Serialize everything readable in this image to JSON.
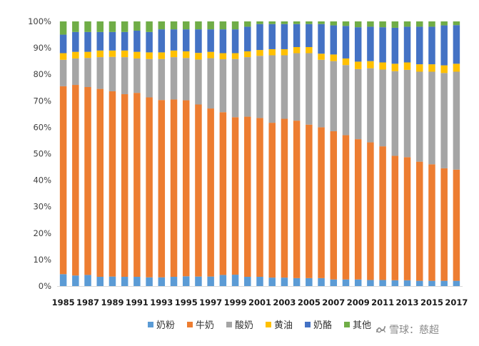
{
  "chart_data": {
    "type": "stacked_bar_percent",
    "categories": [
      "1985",
      "1986",
      "1987",
      "1988",
      "1989",
      "1990",
      "1991",
      "1992",
      "1993",
      "1994",
      "1995",
      "1996",
      "1997",
      "1998",
      "1999",
      "2000",
      "2001",
      "2002",
      "2003",
      "2004",
      "2005",
      "2006",
      "2007",
      "2008",
      "2009",
      "2010",
      "2011",
      "2012",
      "2013",
      "2014",
      "2015",
      "2016",
      "2017"
    ],
    "tick_labels_shown": [
      "1985",
      "1987",
      "1989",
      "1991",
      "1993",
      "1995",
      "1997",
      "1999",
      "2001",
      "2003",
      "2005",
      "2007",
      "2009",
      "2011",
      "2013",
      "2015",
      "2017"
    ],
    "y_ticks": [
      "0%",
      "10%",
      "20%",
      "30%",
      "40%",
      "50%",
      "60%",
      "70%",
      "80%",
      "90%",
      "100%"
    ],
    "ylim": [
      0,
      100
    ],
    "grid": false,
    "legend_position": "bottom",
    "series": [
      {
        "name": "奶粉",
        "color": "#5b9bd5",
        "values": [
          4.5,
          4.0,
          4.2,
          3.5,
          3.6,
          3.5,
          3.5,
          3.3,
          3.3,
          3.5,
          3.7,
          3.6,
          3.6,
          4.2,
          4.3,
          3.5,
          3.5,
          3.2,
          3.2,
          3.0,
          3.0,
          3.0,
          2.5,
          2.5,
          2.5,
          2.3,
          2.3,
          2.2,
          2.2,
          2.0,
          2.0,
          2.0,
          2.0
        ]
      },
      {
        "name": "牛奶",
        "color": "#ed7d31",
        "values": [
          71.0,
          72.0,
          71.0,
          71.0,
          70.0,
          69.0,
          69.5,
          68.0,
          67.0,
          67.0,
          66.5,
          65.0,
          63.5,
          61.5,
          59.5,
          60.5,
          60.0,
          58.5,
          60.0,
          59.5,
          58.0,
          57.0,
          56.0,
          54.5,
          53.0,
          52.0,
          50.5,
          47.0,
          46.5,
          45.0,
          44.0,
          42.5,
          42.0
        ]
      },
      {
        "name": "酸奶",
        "color": "#a5a5a5",
        "values": [
          10.0,
          10.0,
          11.0,
          12.0,
          13.0,
          14.0,
          13.0,
          14.5,
          15.5,
          16.0,
          16.0,
          17.0,
          19.0,
          20.0,
          22.0,
          22.5,
          23.5,
          25.5,
          24.0,
          25.5,
          27.0,
          25.5,
          26.5,
          26.5,
          26.5,
          28.0,
          29.0,
          32.0,
          33.0,
          34.0,
          35.0,
          36.0,
          37.0
        ]
      },
      {
        "name": "黄油",
        "color": "#ffc000",
        "values": [
          2.5,
          2.5,
          2.3,
          2.5,
          2.4,
          2.5,
          2.5,
          2.5,
          2.5,
          2.5,
          2.5,
          2.5,
          2.4,
          2.3,
          2.2,
          2.2,
          2.2,
          2.3,
          2.3,
          2.3,
          2.3,
          2.3,
          2.5,
          2.5,
          2.8,
          2.7,
          2.7,
          2.8,
          2.8,
          2.8,
          2.8,
          2.9,
          3.0
        ]
      },
      {
        "name": "奶酪",
        "color": "#4472c4",
        "values": [
          7.0,
          7.5,
          7.5,
          7.0,
          7.0,
          7.0,
          8.0,
          7.7,
          8.7,
          8.0,
          8.3,
          8.9,
          8.5,
          9.0,
          9.0,
          9.3,
          9.8,
          9.5,
          9.5,
          8.7,
          8.7,
          11.2,
          11.0,
          12.3,
          13.0,
          13.0,
          13.3,
          13.6,
          13.5,
          14.2,
          14.2,
          15.1,
          14.6
        ]
      },
      {
        "name": "其他",
        "color": "#70ad47",
        "values": [
          5.0,
          4.0,
          4.0,
          4.0,
          4.0,
          4.0,
          3.5,
          4.0,
          3.0,
          3.0,
          3.0,
          3.0,
          3.0,
          3.0,
          3.0,
          2.0,
          1.0,
          1.0,
          1.0,
          1.0,
          1.0,
          1.0,
          1.5,
          1.7,
          2.2,
          2.0,
          2.2,
          2.4,
          2.0,
          2.0,
          2.0,
          1.5,
          1.4
        ]
      }
    ]
  },
  "watermark": {
    "text": "雪球：慈超",
    "color": "#8a8a8a"
  }
}
